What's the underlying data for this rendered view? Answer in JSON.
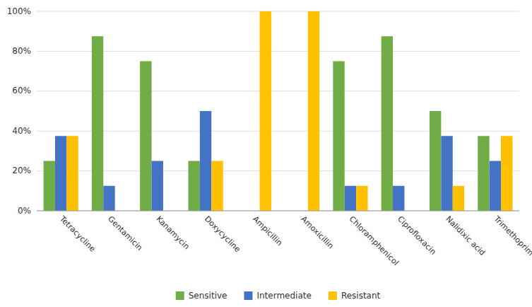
{
  "chart_data": {
    "type": "bar",
    "categories": [
      "Tetracycline",
      "Gentamicin",
      "Kanamycin",
      "Doxycycline",
      "Ampicillin",
      "Amoxicillin",
      "Chloramphenicol",
      "Ciprofloxacin",
      "Nalidixic acid",
      "Trimethoprim"
    ],
    "series": [
      {
        "name": "Sensitive",
        "color": "#70ad47",
        "values": [
          25,
          87.5,
          75,
          25,
          0,
          0,
          75,
          87.5,
          50,
          37.5
        ]
      },
      {
        "name": "Intermediate",
        "color": "#4472c4",
        "values": [
          37.5,
          12.5,
          25,
          50,
          0,
          0,
          12.5,
          12.5,
          37.5,
          25
        ]
      },
      {
        "name": "Resistant",
        "color": "#ffc000",
        "values": [
          37.5,
          0,
          0,
          25,
          100,
          100,
          12.5,
          0,
          12.5,
          37.5
        ]
      }
    ],
    "ylim": [
      0,
      100
    ],
    "yticks": [
      {
        "value": 0,
        "label": "0%"
      },
      {
        "value": 20,
        "label": "20%"
      },
      {
        "value": 40,
        "label": "40%"
      },
      {
        "value": 60,
        "label": "60%"
      },
      {
        "value": 80,
        "label": "80%"
      },
      {
        "value": 100,
        "label": "100%"
      }
    ],
    "grid": true,
    "legend": "bottom"
  }
}
